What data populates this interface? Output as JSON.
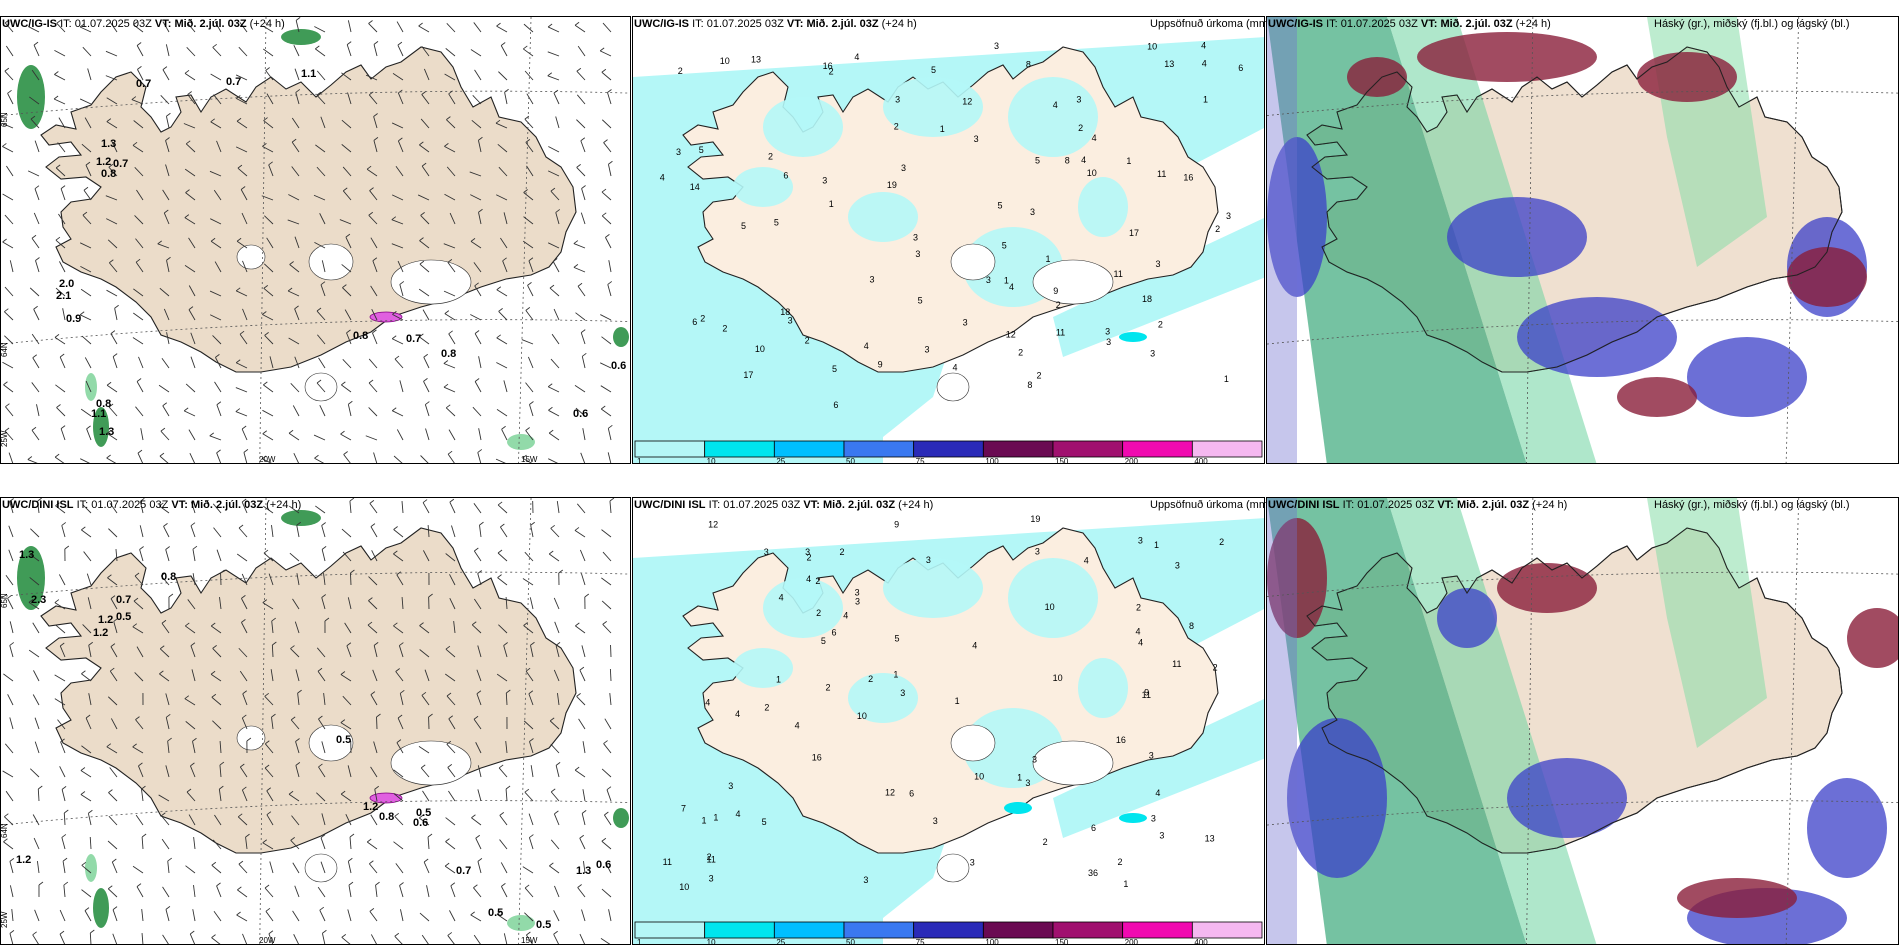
{
  "rows": [
    {
      "model": "UWC/IG-IS",
      "it_label": "IT:",
      "it_value": "01.07.2025 03Z",
      "vt_label": "VT:",
      "vt_value": "Mið. 2.júl. 03Z",
      "lead": "(+24 h)",
      "precip_title": "Uppsöfnuð úrkoma (mm)",
      "cloud_title": "Háský (gr.), miðský (fj.bl.) og lágský (bl.)",
      "wind_labels": [
        "0.7",
        "0.7",
        "1.1",
        "1.3",
        "1.2",
        "0.7",
        "0.8",
        "2.0",
        "2.1",
        "0.9",
        "0.8",
        "0.7",
        "0.8",
        "0.6",
        "0.6",
        "0.8",
        "1.1",
        "1.3"
      ],
      "axis_labels": [
        "65N",
        "64N",
        "25W",
        "20W",
        "15W"
      ]
    },
    {
      "model": "UWC/DINI ISL",
      "it_label": "IT:",
      "it_value": "01.07.2025 03Z",
      "vt_label": "VT:",
      "vt_value": "Mið. 2.júl. 03Z",
      "lead": "(+24 h)",
      "precip_title": "Uppsöfnuð úrkoma (mm)",
      "cloud_title": "Háský (gr.), miðský (fj.bl.) og lágský (bl.)",
      "wind_labels": [
        "1.3",
        "2.3",
        "0.8",
        "0.7",
        "1.2",
        "0.5",
        "1.2",
        "0.5",
        "1.2",
        "0.8",
        "0.5",
        "0.6",
        "1.2",
        "0.7",
        "0.5",
        "0.5",
        "1.3",
        "0.6"
      ],
      "axis_labels": [
        "65N",
        "64N",
        "25W",
        "20W",
        "15W"
      ]
    }
  ],
  "colorbar": {
    "ticks": [
      "1",
      "10",
      "25",
      "50",
      "75",
      "100",
      "150",
      "200",
      "400"
    ],
    "colors": [
      "#b4f7f7",
      "#00e5ee",
      "#00bfff",
      "#3a78f0",
      "#2a2ab8",
      "#6a0a52",
      "#a0106f",
      "#f00ab0",
      "#f5b8f0"
    ]
  },
  "precip_numbers_top": [
    "2",
    "2",
    "3",
    "2",
    "1",
    "2",
    "2",
    "1",
    "3",
    "2",
    "2",
    "3",
    "3",
    "1",
    "10",
    "10",
    "14",
    "13",
    "11",
    "11",
    "3",
    "4",
    "5",
    "3",
    "3",
    "4",
    "5",
    "6",
    "4",
    "3",
    "2",
    "4",
    "3",
    "4",
    "4",
    "3",
    "3",
    "5",
    "3",
    "9",
    "5",
    "5",
    "6",
    "2",
    "8",
    "3",
    "3",
    "5",
    "5",
    "4",
    "3",
    "3",
    "3",
    "2",
    "2",
    "1",
    "3",
    "3",
    "6",
    "6",
    "4",
    "8",
    "4",
    "5",
    "16",
    "17",
    "13",
    "12",
    "11",
    "19",
    "16",
    "5",
    "10",
    "12",
    "9",
    "18",
    "17",
    "18",
    "8",
    "2",
    "1",
    "10",
    "4",
    "3",
    "2",
    "1",
    "1"
  ],
  "precip_numbers_bottom": [
    "1",
    "2",
    "2",
    "3",
    "2",
    "3",
    "3",
    "1",
    "2",
    "3",
    "10",
    "10",
    "11",
    "12",
    "11",
    "10",
    "10",
    "3",
    "4",
    "4",
    "5",
    "3",
    "3",
    "4",
    "5",
    "3",
    "4",
    "6",
    "9",
    "4",
    "3",
    "2",
    "2",
    "4",
    "3",
    "3",
    "3",
    "4",
    "2",
    "3",
    "1",
    "5",
    "4",
    "4",
    "4",
    "1",
    "2",
    "3",
    "4",
    "3",
    "3",
    "1",
    "2",
    "36",
    "16",
    "19",
    "13",
    "12",
    "11",
    "10",
    "8",
    "11",
    "6",
    "7",
    "9",
    "4",
    "3",
    "2",
    "2",
    "3",
    "1",
    "16",
    "6",
    "3",
    "2",
    "1",
    "1",
    "2"
  ]
}
